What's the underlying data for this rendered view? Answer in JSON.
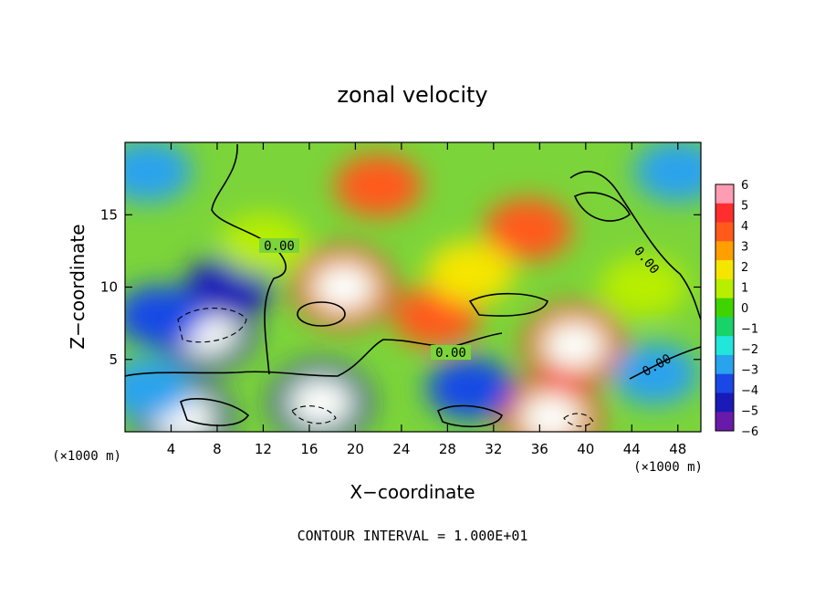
{
  "chart_data": {
    "type": "heatmap",
    "title": "zonal velocity",
    "xlabel": "X−coordinate",
    "ylabel": "Z−coordinate",
    "x_unit_left": "(×1000 m)",
    "x_unit_right": "(×1000 m)",
    "xlim": [
      0,
      50
    ],
    "ylim": [
      0,
      20
    ],
    "x_ticks": [
      4,
      8,
      12,
      16,
      20,
      24,
      28,
      32,
      36,
      40,
      44,
      48
    ],
    "y_ticks": [
      5,
      10,
      15
    ],
    "footer": "CONTOUR INTERVAL = 1.000E+01",
    "colorbar": {
      "ticks": [
        "6",
        "5",
        "4",
        "3",
        "2",
        "1",
        "0",
        "−1",
        "−2",
        "−3",
        "−4",
        "−5",
        "−6"
      ],
      "colors": [
        "#ff9cb3",
        "#ff2d2d",
        "#ff5a1a",
        "#ff9f00",
        "#f5e600",
        "#b8ee00",
        "#3fd400",
        "#18d36a",
        "#22e6dc",
        "#29a3ee",
        "#1948e6",
        "#1a1ab8",
        "#6a1aa8"
      ]
    },
    "contour_labels": [
      "0.00",
      "0.00",
      "0.00",
      "0.00"
    ],
    "features": [
      {
        "x": 19,
        "z": 10,
        "value": 6
      },
      {
        "x": 7,
        "z": 7,
        "value": -6
      },
      {
        "x": 39,
        "z": 6,
        "value": 6
      },
      {
        "x": 5,
        "z": 1,
        "value": -6
      },
      {
        "x": 17,
        "z": 2,
        "value": -6
      },
      {
        "x": 37,
        "z": 1,
        "value": 6
      },
      {
        "x": 9,
        "z": 10,
        "value": -5
      },
      {
        "x": 3,
        "z": 8,
        "value": -4
      },
      {
        "x": 22,
        "z": 17,
        "value": 4
      },
      {
        "x": 35,
        "z": 14,
        "value": 4
      },
      {
        "x": 27,
        "z": 8,
        "value": 4
      },
      {
        "x": 30,
        "z": 3,
        "value": -4
      },
      {
        "x": 2,
        "z": 18,
        "value": -3
      },
      {
        "x": 48,
        "z": 18,
        "value": -3
      },
      {
        "x": 46,
        "z": 4,
        "value": -3
      },
      {
        "x": 2,
        "z": 3,
        "value": -3
      },
      {
        "x": 12,
        "z": 13,
        "value": 1
      },
      {
        "x": 45,
        "z": 10,
        "value": 1
      },
      {
        "x": 30,
        "z": 11,
        "value": 2
      }
    ]
  }
}
